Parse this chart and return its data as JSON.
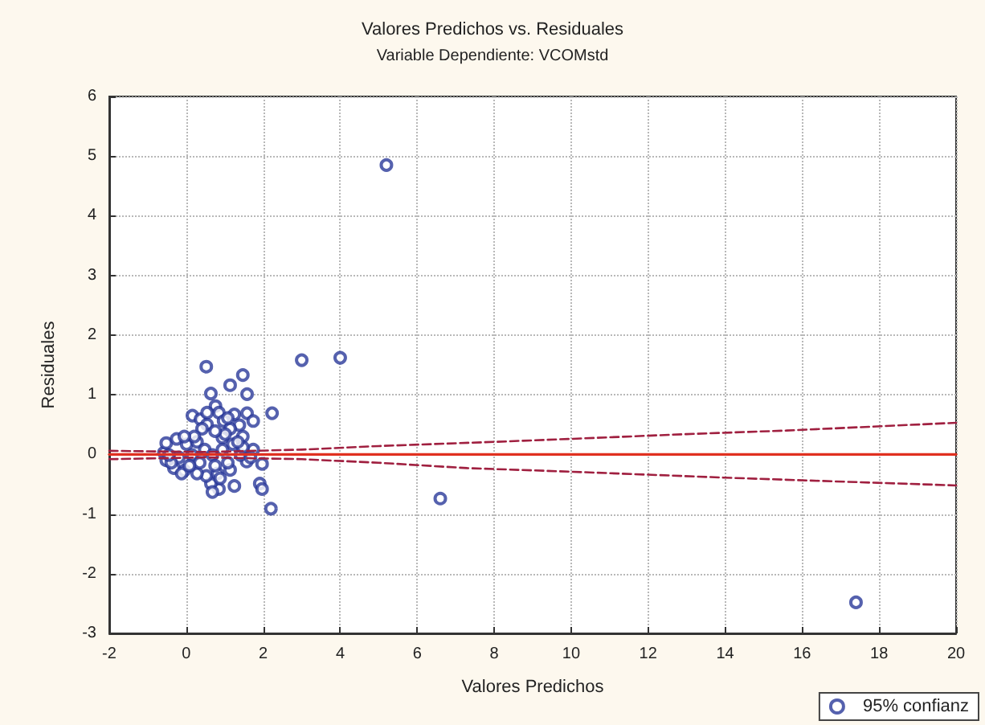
{
  "chart_data": {
    "type": "scatter",
    "title": "Valores Predichos vs. Residuales",
    "subtitle": "Variable Dependiente: VCOMstd",
    "xlabel": "Valores Predichos",
    "ylabel": "Residuales",
    "xlim": [
      -2,
      20
    ],
    "xticks": [
      -2,
      0,
      2,
      4,
      6,
      8,
      10,
      12,
      14,
      16,
      18,
      20
    ],
    "ylim": [
      -3,
      6
    ],
    "yticks": [
      -3,
      -2,
      -1,
      0,
      1,
      2,
      3,
      4,
      5,
      6
    ],
    "grid": true,
    "legend": "bottom right",
    "series": [
      {
        "name": "95% confianz",
        "color": "#2a3a9a",
        "marker": "circle",
        "x": [
          5.2,
          3.0,
          4.0,
          6.6,
          17.4,
          2.2,
          0.52,
          1.47,
          1.14,
          0.64,
          1.58,
          2.23,
          0.76,
          0.16,
          0.37,
          0.85,
          1.25,
          1.58,
          1.74,
          0.97,
          1.38,
          0.54,
          1.14,
          0.94,
          1.47,
          1.21,
          1.74,
          1.57,
          1.97,
          1.14,
          1.91,
          1.97,
          1.25,
          0.85,
          0.64,
          0.52,
          0.81,
          0.28,
          -0.05,
          -0.32,
          -0.52,
          -0.58,
          -0.52,
          -0.25,
          0.01,
          0.28,
          0.48,
          0.68,
          0.94,
          0.15,
          -0.19,
          -0.39,
          0.35,
          0.75,
          1.08,
          1.41,
          1.47,
          1.34,
          1.01,
          0.75,
          0.41,
          0.21,
          -0.05,
          1.08,
          0.54,
          1.67,
          0.88,
          0.68,
          -0.12,
          0.08,
          -0.45
        ],
        "values": [
          4.85,
          1.58,
          1.62,
          -0.74,
          -2.48,
          -0.91,
          1.47,
          1.33,
          1.16,
          1.02,
          1.01,
          0.69,
          0.81,
          0.65,
          0.59,
          0.7,
          0.67,
          0.69,
          0.56,
          0.56,
          0.49,
          0.5,
          0.43,
          0.28,
          0.3,
          0.17,
          0.08,
          -0.12,
          -0.16,
          -0.26,
          -0.49,
          -0.58,
          -0.53,
          -0.58,
          -0.49,
          -0.36,
          -0.32,
          -0.32,
          -0.27,
          -0.23,
          -0.1,
          0.03,
          0.19,
          0.26,
          0.17,
          0.21,
          0.08,
          -0.01,
          0.08,
          -0.01,
          -0.05,
          -0.14,
          -0.14,
          -0.19,
          -0.14,
          -0.01,
          0.12,
          0.21,
          0.34,
          0.39,
          0.43,
          0.3,
          0.3,
          0.61,
          0.7,
          -0.05,
          -0.4,
          -0.63,
          -0.32,
          -0.19,
          -0.01
        ]
      },
      {
        "type": "line",
        "color": "#e03020",
        "line_style": "solid",
        "marker": "none",
        "x": [
          -2,
          20
        ],
        "values": [
          0,
          0
        ]
      },
      {
        "type": "line",
        "color": "#a02040",
        "line_style": "dashed",
        "marker": "none",
        "x": [
          -2,
          0.5,
          3,
          5,
          8,
          10,
          13,
          15.6,
          20
        ],
        "values": [
          0.06,
          0.04,
          0.08,
          0.14,
          0.21,
          0.26,
          0.34,
          0.4,
          0.53
        ]
      },
      {
        "type": "line",
        "color": "#a02040",
        "line_style": "dashed",
        "marker": "none",
        "x": [
          -2,
          0.5,
          3,
          5,
          7.3,
          10,
          14,
          17.2,
          20
        ],
        "values": [
          -0.08,
          -0.05,
          -0.08,
          -0.14,
          -0.23,
          -0.29,
          -0.39,
          -0.46,
          -0.52
        ]
      }
    ]
  }
}
